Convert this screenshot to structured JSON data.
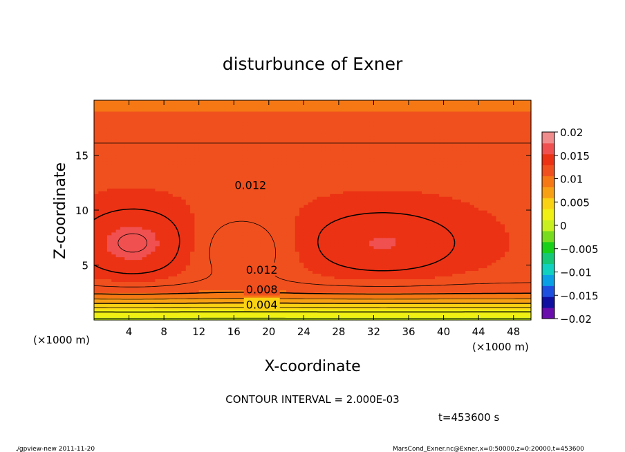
{
  "chart_data": {
    "type": "heatmap",
    "title": "disturbunce of Exner",
    "xlabel": "X-coordinate",
    "ylabel": "Z-coordinate",
    "x_unit_label": "(×1000 m)",
    "xlim": [
      0,
      50
    ],
    "ylim": [
      0,
      20
    ],
    "x_ticks": [
      4,
      8,
      12,
      16,
      20,
      24,
      28,
      32,
      36,
      40,
      44,
      48
    ],
    "y_ticks": [
      5,
      10,
      15
    ],
    "colorbar": {
      "levels": [
        -0.02,
        -0.015,
        -0.01,
        -0.005,
        0,
        0.005,
        0.01,
        0.015,
        0.02
      ],
      "labels": [
        "0.02",
        "0.015",
        "0.01",
        "0.005",
        "0",
        "−0.005",
        "−0.01",
        "−0.015",
        "−0.02"
      ],
      "colors": [
        "#6a0dad",
        "#1010a0",
        "#1e50e0",
        "#0aa0e6",
        "#10d0c0",
        "#14c878",
        "#18d018",
        "#78dc1e",
        "#c8f01e",
        "#f0f014",
        "#fad214",
        "#f8a014",
        "#f57814",
        "#f0501e",
        "#eb3214",
        "#f05050",
        "#f08c8c"
      ]
    },
    "contour_labels": [
      {
        "text": "0.012",
        "x": 17.9,
        "z": 12.3
      },
      {
        "text": "0.012",
        "x": 19.2,
        "z": 4.6
      },
      {
        "text": "0.008",
        "x": 19.2,
        "z": 2.8
      },
      {
        "text": "0.004",
        "x": 19.2,
        "z": 1.4
      }
    ]
  },
  "annotations": {
    "contour_interval": "CONTOUR INTERVAL = 2.000E-03",
    "time": "t=453600 s",
    "footer_left": "./gpview-new  2011-11-20",
    "footer_right": "MarsCond_Exner.nc@Exner,x=0:50000,z=0:20000,t=453600"
  }
}
